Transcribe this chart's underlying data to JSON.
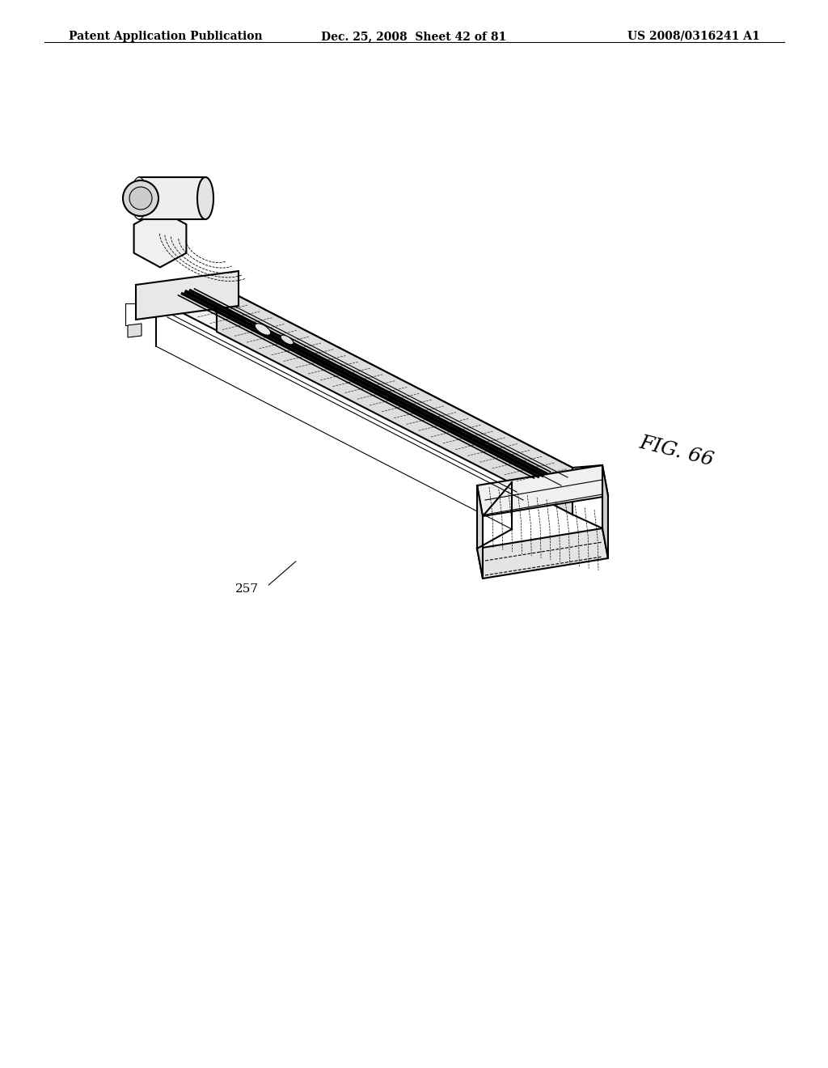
{
  "background_color": "#ffffff",
  "header_left": "Patent Application Publication",
  "header_center": "Dec. 25, 2008  Sheet 42 of 81",
  "header_right": "US 2008/0316241 A1",
  "fig_label": "FIG. 66",
  "part_label": "257",
  "header_fontsize": 10,
  "fig_label_fontsize": 18,
  "part_label_fontsize": 11
}
